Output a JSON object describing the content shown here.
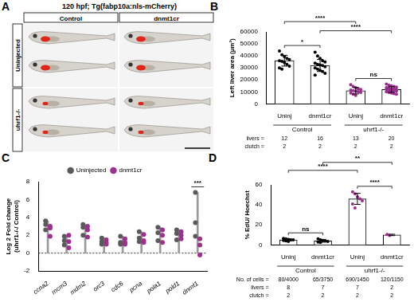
{
  "image_panel": {
    "panel_label": "A",
    "title": "120 hpf; Tg(fabp10a:nls-mCherry)",
    "columns": [
      "Control",
      "dnmt1cr"
    ],
    "rows": [
      "Uninjected",
      "uhrf1-/-"
    ]
  },
  "chart_data": [
    {
      "panel_label": "B",
      "type": "bar",
      "y_label": "Left liver area (µm²)",
      "categories": [
        "Uninj",
        "dnmt1cr",
        "Uninj",
        "dnmt1cr"
      ],
      "groups": [
        {
          "label": "Control",
          "from": 0,
          "to": 1
        },
        {
          "label": "uhrf1-/-",
          "from": 2,
          "to": 3
        }
      ],
      "values": [
        36000,
        32000,
        11000,
        12000
      ],
      "errors": [
        4500,
        5000,
        2700,
        2400
      ],
      "points": [
        [
          44000,
          41000,
          39500,
          38000,
          37000,
          36000,
          35500,
          34500,
          33000,
          31500,
          30000,
          29000
        ],
        [
          43000,
          40000,
          38000,
          36000,
          35000,
          34000,
          33000,
          32500,
          32000,
          31000,
          30000,
          29000,
          28000,
          27000,
          25500,
          24000
        ],
        [
          16000,
          14500,
          13500,
          12500,
          12000,
          11500,
          11000,
          10500,
          10000,
          9500,
          9000,
          8000,
          7000
        ],
        [
          16500,
          15500,
          15000,
          14500,
          14000,
          13500,
          13000,
          12500,
          12500,
          12000,
          12000,
          11500,
          11000,
          11000,
          10500,
          10000,
          9500,
          9000,
          8500,
          8000
        ]
      ],
      "color": "#ffffff",
      "colors": [
        "#000000",
        "#000000",
        "#9a2c8e",
        "#9a2c8e"
      ],
      "ylim": [
        0,
        60000
      ],
      "yticks": [
        0,
        10000,
        20000,
        30000,
        40000,
        50000,
        60000
      ],
      "grid": false,
      "annotations": [
        {
          "from": 0,
          "to": 1,
          "text": "*"
        },
        {
          "from": 2,
          "to": 3,
          "text": "ns"
        },
        {
          "from": 1,
          "to": 3,
          "text": "****"
        },
        {
          "from": 0,
          "to": 2,
          "text": "****"
        }
      ],
      "table": [
        {
          "label": "livers =",
          "values": [
            12,
            16,
            13,
            20
          ]
        },
        {
          "label": "clutch =",
          "values": [
            2,
            2,
            2,
            2
          ]
        }
      ]
    },
    {
      "panel_label": "C",
      "type": "scatter",
      "y_label": [
        "Log 2 Fold change",
        "(uhrf1-/-/ Control)"
      ],
      "categories": [
        "ccna2",
        "mcm3",
        "mdm2",
        "orc3",
        "cdc6",
        "pcna",
        "pola1",
        "pold1",
        "dnmt1"
      ],
      "series": [
        {
          "name": "Uninjected",
          "color": "#5a5a5a",
          "values": [
            [
              3.6,
              3.2,
              2.6
            ],
            [
              1.9,
              1.4,
              0.9
            ],
            [
              3.2,
              2.9,
              2.0
            ],
            [
              1.7,
              1.3,
              1.0
            ],
            [
              1.9,
              1.2,
              1.0
            ],
            [
              2.4,
              1.7,
              1.3
            ],
            [
              2.9,
              2.3,
              1.4
            ],
            [
              2.6,
              2.2,
              1.5
            ],
            [
              6.8,
              3.4,
              1.9
            ]
          ]
        },
        {
          "name": "dnmt1cr",
          "color": "#a0308f",
          "values": [
            [
              3.0,
              2.8,
              1.9
            ],
            [
              2.0,
              1.3,
              0.6
            ],
            [
              3.0,
              2.6,
              1.8
            ],
            [
              1.5,
              1.2,
              1.0
            ],
            [
              1.6,
              1.2,
              1.0
            ],
            [
              2.1,
              1.4,
              1.2
            ],
            [
              2.6,
              2.0,
              1.2
            ],
            [
              2.4,
              2.0,
              1.6
            ],
            [
              1.6,
              0.9,
              -0.2
            ]
          ]
        }
      ],
      "ylim": [
        -2,
        8
      ],
      "yticks": [
        -2,
        0,
        2,
        4,
        6,
        8
      ],
      "grid": false,
      "legend": "top",
      "annotations": [
        {
          "from": 8,
          "to": 8,
          "text": "***"
        }
      ]
    },
    {
      "panel_label": "D",
      "type": "bar",
      "y_label": "% EdU/ Hoechst",
      "categories": [
        "Uninj",
        "dnmt1cr",
        "Uninj",
        "dnmt1cr"
      ],
      "groups": [
        {
          "label": "Control",
          "from": 0,
          "to": 1
        },
        {
          "label": "uhrf1-/-",
          "from": 2,
          "to": 3
        }
      ],
      "values": [
        5,
        4,
        46,
        10
      ],
      "errors": [
        1,
        1.2,
        5.5,
        0.7
      ],
      "points": [
        [
          6.5,
          6,
          5.5,
          5,
          5,
          4.5,
          4,
          3.5
        ],
        [
          6,
          5,
          4.5,
          4,
          3.5,
          3,
          2.5
        ],
        [
          53,
          51,
          48,
          46,
          44,
          41,
          37
        ],
        [
          10.5,
          9.5
        ]
      ],
      "color": "#ffffff",
      "colors": [
        "#000000",
        "#000000",
        "#9a2c8e",
        "#9a2c8e"
      ],
      "ylim": [
        0,
        60
      ],
      "yticks": [
        0,
        20,
        40,
        60
      ],
      "grid": false,
      "annotations": [
        {
          "from": 0,
          "to": 1,
          "text": "ns"
        },
        {
          "from": 2,
          "to": 3,
          "text": "****"
        },
        {
          "from": 0,
          "to": 2,
          "text": "****"
        },
        {
          "from": 1,
          "to": 3,
          "text": "**"
        }
      ],
      "table": [
        {
          "label": "No. of cells =",
          "values": [
            "80/4000",
            "65/3750",
            "690/1450",
            "120/1150"
          ]
        },
        {
          "label": "livers =",
          "values": [
            8,
            7,
            7,
            2
          ]
        },
        {
          "label": "clutch =",
          "values": [
            2,
            2,
            2,
            2
          ]
        }
      ]
    }
  ]
}
